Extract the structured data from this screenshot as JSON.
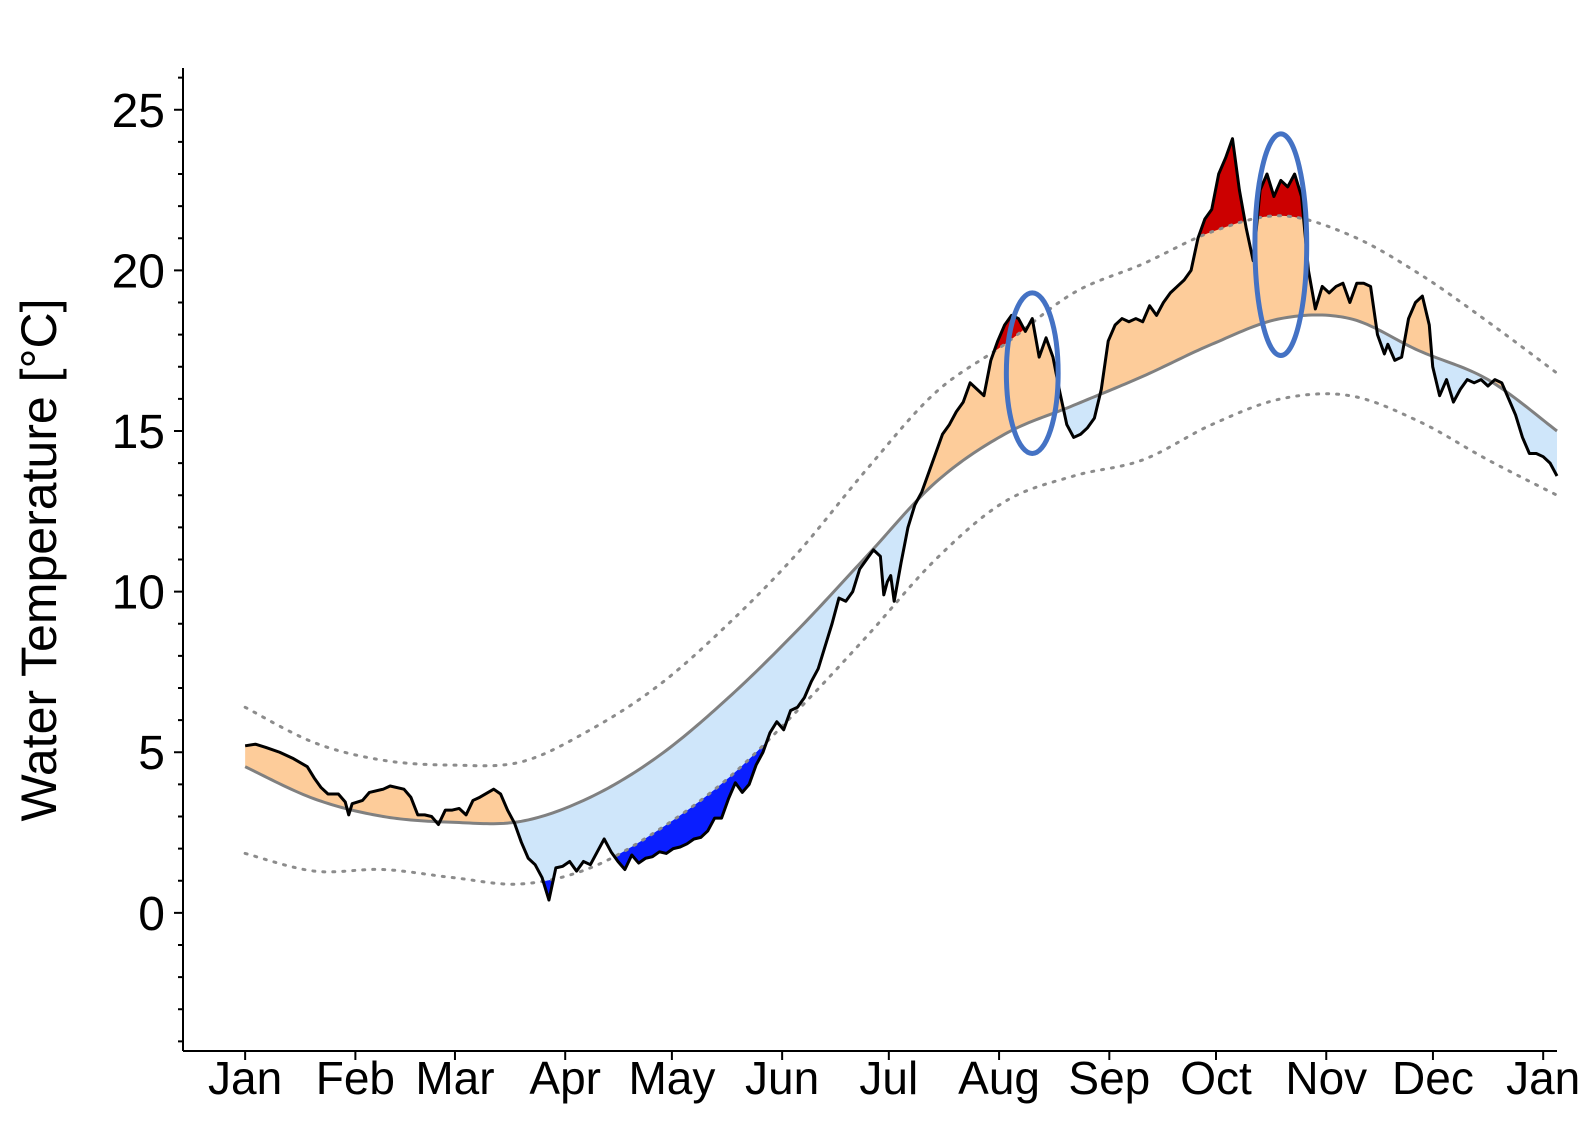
{
  "chart_data": {
    "type": "area",
    "title": "",
    "xlabel": "",
    "ylabel": "Water Temperature [°C]",
    "x_tick_labels": [
      "Jan",
      "Feb",
      "Mar",
      "Apr",
      "May",
      "Jun",
      "Jul",
      "Aug",
      "Sep",
      "Oct",
      "Nov",
      "Dec",
      "Jan"
    ],
    "y_ticks": [
      0,
      5,
      10,
      15,
      20,
      25
    ],
    "xlim": [
      -18,
      380
    ],
    "ylim": [
      -4.3,
      26.3
    ],
    "grid": false,
    "legend": "none",
    "colors": {
      "above_climatology": "#fdcc9a",
      "below_climatology": "#cfe6fa",
      "marine_heatwave": "#cc0000",
      "marine_coldspell": "#0a1eff",
      "observed_line": "#000000",
      "climatology_line": "#808080",
      "threshold_line": "#8c8c8c",
      "highlight_ellipse": "#4472c4"
    },
    "series": [
      {
        "name": "",
        "role": "observed",
        "points": [
          [
            0,
            5.2
          ],
          [
            3,
            5.25
          ],
          [
            6,
            5.15
          ],
          [
            10,
            5.0
          ],
          [
            14,
            4.8
          ],
          [
            18,
            4.55
          ],
          [
            20,
            4.2
          ],
          [
            22,
            3.9
          ],
          [
            24,
            3.7
          ],
          [
            27,
            3.7
          ],
          [
            29,
            3.45
          ],
          [
            30,
            3.05
          ],
          [
            31,
            3.4
          ],
          [
            34,
            3.5
          ],
          [
            36,
            3.75
          ],
          [
            40,
            3.85
          ],
          [
            42,
            3.95
          ],
          [
            46,
            3.85
          ],
          [
            48,
            3.6
          ],
          [
            50,
            3.05
          ],
          [
            52,
            3.05
          ],
          [
            54,
            3.0
          ],
          [
            56,
            2.75
          ],
          [
            58,
            3.2
          ],
          [
            60,
            3.2
          ],
          [
            62,
            3.25
          ],
          [
            64,
            3.05
          ],
          [
            66,
            3.5
          ],
          [
            68,
            3.6
          ],
          [
            72,
            3.85
          ],
          [
            74,
            3.7
          ],
          [
            76,
            3.2
          ],
          [
            78,
            2.8
          ],
          [
            80,
            2.2
          ],
          [
            82,
            1.7
          ],
          [
            84,
            1.5
          ],
          [
            86,
            1.1
          ],
          [
            88,
            0.4
          ],
          [
            90,
            1.4
          ],
          [
            92,
            1.45
          ],
          [
            94,
            1.6
          ],
          [
            96,
            1.3
          ],
          [
            98,
            1.6
          ],
          [
            100,
            1.5
          ],
          [
            102,
            1.9
          ],
          [
            104,
            2.3
          ],
          [
            106,
            1.9
          ],
          [
            108,
            1.6
          ],
          [
            110,
            1.35
          ],
          [
            112,
            1.8
          ],
          [
            114,
            1.55
          ],
          [
            116,
            1.7
          ],
          [
            118,
            1.75
          ],
          [
            120,
            1.9
          ],
          [
            122,
            1.85
          ],
          [
            124,
            2.0
          ],
          [
            126,
            2.05
          ],
          [
            128,
            2.15
          ],
          [
            130,
            2.3
          ],
          [
            132,
            2.35
          ],
          [
            134,
            2.55
          ],
          [
            136,
            2.95
          ],
          [
            138,
            2.95
          ],
          [
            140,
            3.55
          ],
          [
            142,
            4.05
          ],
          [
            144,
            3.75
          ],
          [
            146,
            4.0
          ],
          [
            148,
            4.6
          ],
          [
            150,
            5.0
          ],
          [
            152,
            5.6
          ],
          [
            154,
            5.95
          ],
          [
            156,
            5.7
          ],
          [
            158,
            6.3
          ],
          [
            160,
            6.4
          ],
          [
            162,
            6.7
          ],
          [
            164,
            7.2
          ],
          [
            166,
            7.6
          ],
          [
            168,
            8.3
          ],
          [
            170,
            9.0
          ],
          [
            172,
            9.8
          ],
          [
            174,
            9.7
          ],
          [
            176,
            10.0
          ],
          [
            178,
            10.7
          ],
          [
            180,
            11.0
          ],
          [
            182,
            11.3
          ],
          [
            184,
            11.1
          ],
          [
            185,
            9.9
          ],
          [
            186,
            10.3
          ],
          [
            187,
            10.5
          ],
          [
            188,
            9.7
          ],
          [
            190,
            10.9
          ],
          [
            192,
            12.0
          ],
          [
            194,
            12.7
          ],
          [
            196,
            13.1
          ],
          [
            198,
            13.7
          ],
          [
            200,
            14.3
          ],
          [
            202,
            14.9
          ],
          [
            204,
            15.2
          ],
          [
            206,
            15.6
          ],
          [
            208,
            15.9
          ],
          [
            210,
            16.5
          ],
          [
            212,
            16.3
          ],
          [
            214,
            16.1
          ],
          [
            216,
            17.2
          ],
          [
            218,
            17.8
          ],
          [
            220,
            18.3
          ],
          [
            222,
            18.6
          ],
          [
            224,
            18.5
          ],
          [
            226,
            18.1
          ],
          [
            228,
            18.5
          ],
          [
            230,
            17.3
          ],
          [
            232,
            17.9
          ],
          [
            234,
            17.3
          ],
          [
            236,
            16.2
          ],
          [
            238,
            15.2
          ],
          [
            240,
            14.8
          ],
          [
            242,
            14.9
          ],
          [
            244,
            15.1
          ],
          [
            246,
            15.4
          ],
          [
            248,
            16.3
          ],
          [
            250,
            17.8
          ],
          [
            252,
            18.3
          ],
          [
            254,
            18.5
          ],
          [
            256,
            18.4
          ],
          [
            258,
            18.5
          ],
          [
            260,
            18.4
          ],
          [
            262,
            18.9
          ],
          [
            264,
            18.6
          ],
          [
            266,
            19.0
          ],
          [
            268,
            19.3
          ],
          [
            270,
            19.5
          ],
          [
            272,
            19.7
          ],
          [
            274,
            20.0
          ],
          [
            276,
            21.0
          ],
          [
            278,
            21.6
          ],
          [
            280,
            21.9
          ],
          [
            282,
            23.0
          ],
          [
            284,
            23.5
          ],
          [
            286,
            24.1
          ],
          [
            288,
            22.5
          ],
          [
            290,
            21.3
          ],
          [
            292,
            20.3
          ],
          [
            294,
            22.5
          ],
          [
            296,
            23.0
          ],
          [
            298,
            22.3
          ],
          [
            300,
            22.8
          ],
          [
            302,
            22.6
          ],
          [
            304,
            23.0
          ],
          [
            306,
            22.3
          ],
          [
            308,
            20.0
          ],
          [
            310,
            18.8
          ],
          [
            312,
            19.5
          ],
          [
            314,
            19.3
          ],
          [
            316,
            19.5
          ],
          [
            318,
            19.6
          ],
          [
            320,
            19.0
          ],
          [
            322,
            19.6
          ],
          [
            324,
            19.6
          ],
          [
            326,
            19.5
          ],
          [
            328,
            18.0
          ],
          [
            330,
            17.4
          ],
          [
            331,
            17.7
          ],
          [
            333,
            17.2
          ],
          [
            335,
            17.3
          ],
          [
            337,
            18.5
          ],
          [
            339,
            19.0
          ],
          [
            341,
            19.2
          ],
          [
            343,
            18.3
          ],
          [
            344,
            17.0
          ],
          [
            346,
            16.1
          ],
          [
            348,
            16.6
          ],
          [
            350,
            15.9
          ],
          [
            352,
            16.3
          ],
          [
            354,
            16.6
          ],
          [
            356,
            16.5
          ],
          [
            358,
            16.6
          ],
          [
            360,
            16.4
          ],
          [
            362,
            16.6
          ],
          [
            364,
            16.5
          ],
          [
            366,
            16.0
          ],
          [
            368,
            15.5
          ],
          [
            370,
            14.8
          ],
          [
            372,
            14.3
          ],
          [
            374,
            14.3
          ],
          [
            376,
            14.2
          ],
          [
            378,
            14.0
          ],
          [
            380,
            13.6
          ]
        ]
      },
      {
        "name": "",
        "role": "climatology",
        "points": [
          [
            0,
            4.55
          ],
          [
            20,
            3.55
          ],
          [
            40,
            3.0
          ],
          [
            60,
            2.82
          ],
          [
            80,
            2.85
          ],
          [
            100,
            3.6
          ],
          [
            120,
            4.9
          ],
          [
            140,
            6.7
          ],
          [
            160,
            8.8
          ],
          [
            180,
            11.1
          ],
          [
            200,
            13.4
          ],
          [
            220,
            14.9
          ],
          [
            240,
            15.8
          ],
          [
            260,
            16.7
          ],
          [
            280,
            17.7
          ],
          [
            300,
            18.5
          ],
          [
            320,
            18.5
          ],
          [
            340,
            17.5
          ],
          [
            360,
            16.6
          ],
          [
            380,
            15.0
          ]
        ]
      },
      {
        "name": "",
        "role": "upper_threshold",
        "points": [
          [
            0,
            6.4
          ],
          [
            20,
            5.3
          ],
          [
            40,
            4.75
          ],
          [
            60,
            4.6
          ],
          [
            80,
            4.7
          ],
          [
            100,
            5.7
          ],
          [
            120,
            7.1
          ],
          [
            140,
            9.0
          ],
          [
            160,
            11.2
          ],
          [
            180,
            13.8
          ],
          [
            200,
            16.2
          ],
          [
            220,
            17.7
          ],
          [
            240,
            19.3
          ],
          [
            260,
            20.2
          ],
          [
            280,
            21.2
          ],
          [
            300,
            21.7
          ],
          [
            320,
            21.1
          ],
          [
            340,
            19.9
          ],
          [
            360,
            18.4
          ],
          [
            380,
            16.8
          ]
        ]
      },
      {
        "name": "",
        "role": "lower_threshold",
        "points": [
          [
            0,
            1.85
          ],
          [
            20,
            1.3
          ],
          [
            40,
            1.35
          ],
          [
            60,
            1.1
          ],
          [
            80,
            0.9
          ],
          [
            100,
            1.4
          ],
          [
            120,
            2.6
          ],
          [
            140,
            4.2
          ],
          [
            160,
            6.3
          ],
          [
            180,
            8.6
          ],
          [
            200,
            11.0
          ],
          [
            220,
            12.8
          ],
          [
            240,
            13.6
          ],
          [
            260,
            14.1
          ],
          [
            280,
            15.2
          ],
          [
            300,
            16.0
          ],
          [
            320,
            16.1
          ],
          [
            340,
            15.3
          ],
          [
            360,
            14.1
          ],
          [
            380,
            13.0
          ]
        ]
      }
    ],
    "annotations": [
      {
        "type": "ellipse",
        "x_center": 228,
        "y_center": 16.8,
        "x_radius": 7.5,
        "y_radius": 2.5
      },
      {
        "type": "ellipse",
        "x_center": 300,
        "y_center": 20.8,
        "x_radius": 7.5,
        "y_radius": 3.45
      }
    ]
  }
}
